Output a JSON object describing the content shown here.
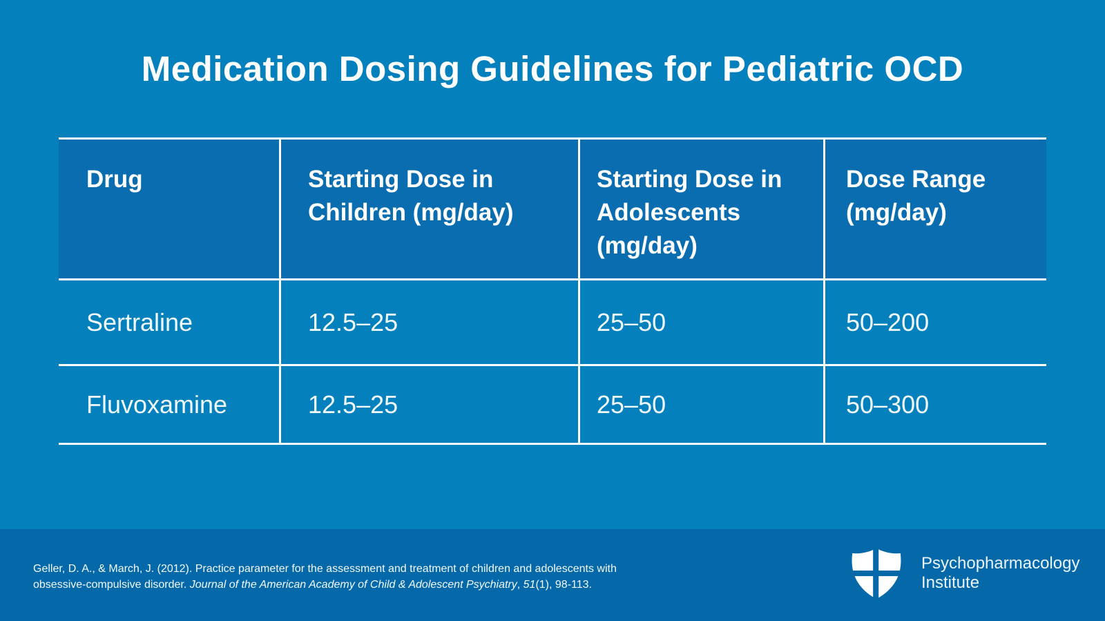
{
  "title": "Medication Dosing Guidelines for Pediatric OCD",
  "colors": {
    "background": "#0481BD",
    "table_header_background": "#0A6DB0",
    "footer_background": "#0569A9",
    "text": "#FFFFFF",
    "table_lines": "#FFFFFF"
  },
  "table": {
    "columns": [
      "Drug",
      "Starting Dose in Children (mg/day)",
      "Starting Dose in Adolescents (mg/day)",
      "Dose Range (mg/day)"
    ],
    "rows": [
      [
        "Sertraline",
        "12.5–25",
        "25–50",
        "50–200"
      ],
      [
        "Fluvoxamine",
        "12.5–25",
        "25–50",
        "50–300"
      ]
    ]
  },
  "chart_data": {
    "type": "table",
    "title": "Medication Dosing Guidelines for Pediatric OCD",
    "columns": [
      "Drug",
      "Starting Dose in Children (mg/day)",
      "Starting Dose in Adolescents (mg/day)",
      "Dose Range (mg/day)"
    ],
    "rows": [
      [
        "Sertraline",
        "12.5–25",
        "25–50",
        "50–200"
      ],
      [
        "Fluvoxamine",
        "12.5–25",
        "25–50",
        "50–300"
      ]
    ]
  },
  "footer": {
    "citation": {
      "line1": "Geller, D. A., & March, J. (2012). Practice parameter for the assessment and treatment of children and adolescents with",
      "line2_segments": [
        {
          "text": "obsessive-compulsive disorder. ",
          "style": "normal"
        },
        {
          "text": "Journal of the American Academy of Child & Adolescent Psychiatry",
          "style": "italic"
        },
        {
          "text": ", ",
          "style": "normal"
        },
        {
          "text": "51",
          "style": "italic"
        },
        {
          "text": "(1), 98-113.",
          "style": "normal"
        }
      ]
    },
    "logo": {
      "icon": "shield-cross-icon",
      "line1": "Psychopharmacology",
      "line2": "Institute"
    }
  }
}
